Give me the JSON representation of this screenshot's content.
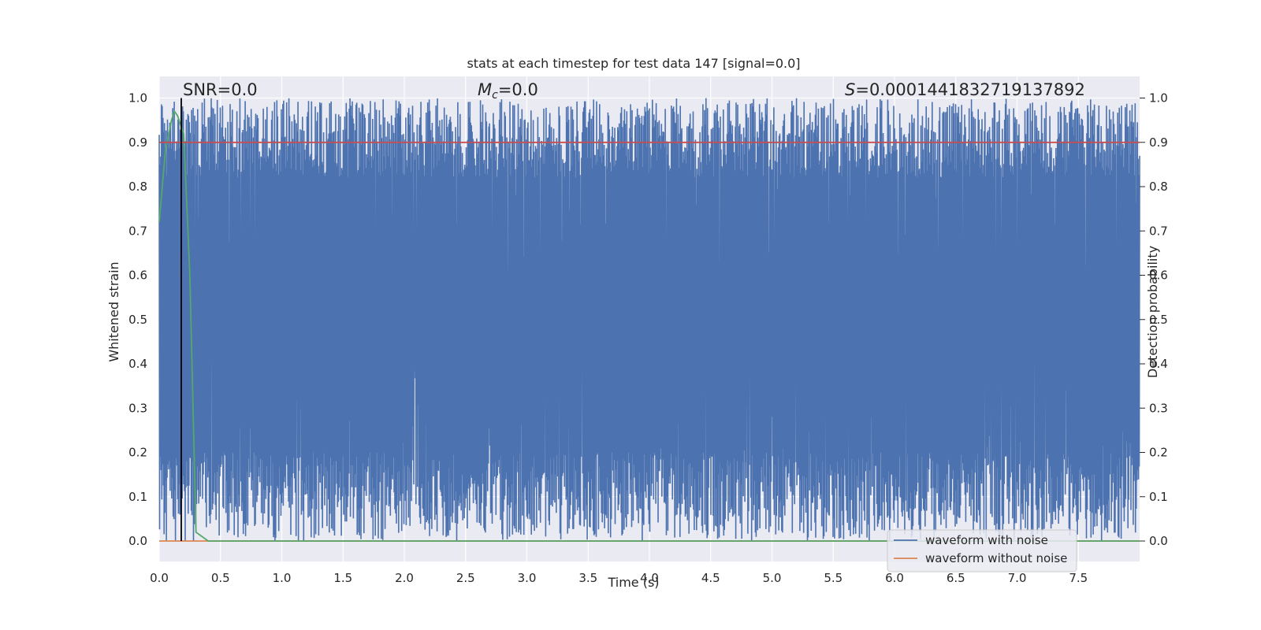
{
  "chart_data": {
    "type": "line",
    "title": "stats at each timestep for test data 147 [signal=0.0]",
    "xlabel": "Time (s)",
    "ylabel_left": "Whitened strain",
    "ylabel_right": "Detection probability",
    "xlim": [
      0.0,
      8.0
    ],
    "ylim": [
      -0.05,
      1.05
    ],
    "x_ticks": [
      "0.0",
      "0.5",
      "1.0",
      "1.5",
      "2.0",
      "2.5",
      "3.0",
      "3.5",
      "4.0",
      "4.5",
      "5.0",
      "5.5",
      "6.0",
      "6.5",
      "7.0",
      "7.5"
    ],
    "y_ticks": [
      "0.0",
      "0.1",
      "0.2",
      "0.3",
      "0.4",
      "0.5",
      "0.6",
      "0.7",
      "0.8",
      "0.9",
      "1.0"
    ],
    "grid": true,
    "legend_position": "lower-right",
    "annotations": {
      "snr": "SNR=0.0",
      "mc_symbol": "M",
      "mc_sub": "c",
      "mc_value": "=0.0",
      "s_symbol": "S",
      "s_value": "=0.0001441832719137892"
    },
    "series": [
      {
        "name": "waveform with noise",
        "color": "#4c72b0",
        "description_range": [
          0.0,
          1.0
        ],
        "x_range": [
          0.0,
          8.0
        ]
      },
      {
        "name": "waveform without noise",
        "color": "#dd8452",
        "x": [
          0.0,
          8.0
        ],
        "values": [
          0.0,
          0.0
        ]
      },
      {
        "color": "#55a868",
        "x": [
          0.0,
          0.05,
          0.1,
          0.125,
          0.15,
          0.2,
          0.25,
          0.3,
          0.35,
          0.4,
          1.0,
          2.0,
          4.0,
          6.0,
          8.0
        ],
        "values": [
          0.72,
          0.88,
          0.95,
          0.97,
          0.96,
          0.92,
          0.6,
          0.02,
          0.01,
          0.0,
          0.0,
          0.0,
          0.0,
          0.0,
          0.0
        ]
      },
      {
        "color": "#c44e52",
        "x": [
          0.0,
          8.0
        ],
        "values": [
          0.9,
          0.9
        ]
      }
    ],
    "vline": {
      "x": 0.18,
      "color": "#000000",
      "ymin": 0.0,
      "ymax": 1.0
    }
  }
}
